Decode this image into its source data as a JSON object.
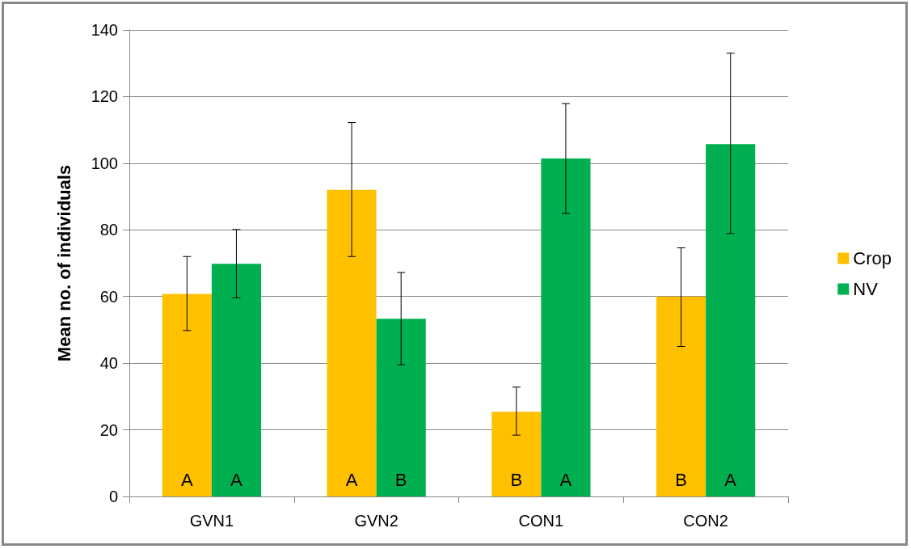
{
  "chart_data": {
    "type": "bar",
    "ylabel": "Mean no. of individuals",
    "categories": [
      "GVN1",
      "GVN2",
      "CON1",
      "CON2"
    ],
    "series": [
      {
        "name": "Crop",
        "color": "#ffc000",
        "values": [
          60.8,
          92,
          25.4,
          60
        ],
        "errors": [
          [
            49.8,
            72
          ],
          [
            72,
            112.2
          ],
          [
            18.4,
            32.8
          ],
          [
            45,
            74.6
          ]
        ],
        "value_labels": [
          "A",
          "A",
          "B",
          "B"
        ]
      },
      {
        "name": "NV",
        "color": "#00b050",
        "values": [
          69.8,
          53.3,
          101.4,
          105.7
        ],
        "errors": [
          [
            59.6,
            80.1
          ],
          [
            39.5,
            67.2
          ],
          [
            84.9,
            117.9
          ],
          [
            78.9,
            133
          ]
        ],
        "value_labels": [
          "A",
          "B",
          "A",
          "A"
        ]
      }
    ],
    "ylim": [
      0,
      140
    ],
    "yticks": [
      0,
      20,
      40,
      60,
      80,
      100,
      120,
      140
    ],
    "grid": "y",
    "legend": "right"
  }
}
